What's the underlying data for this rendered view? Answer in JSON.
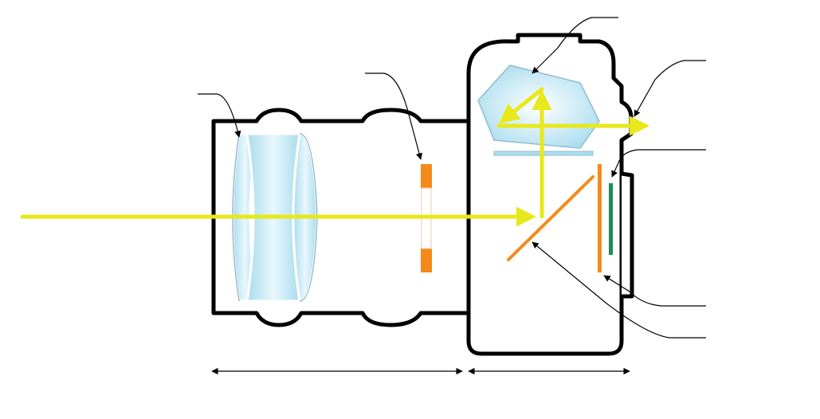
{
  "colors": {
    "outline": "#000000",
    "light_ray": "#e8e81a",
    "mirror": "#f58a1a",
    "sensor": "#1f8a5a",
    "glass": "#bfe6f2",
    "background": "#ffffff"
  },
  "parts": [
    "lens-body",
    "lens-elements",
    "aperture-diaphragm",
    "camera-body",
    "pentaprism",
    "focusing-screen",
    "eyepiece",
    "reflex-mirror",
    "shutter",
    "image-sensor",
    "rear-display"
  ],
  "labels": []
}
